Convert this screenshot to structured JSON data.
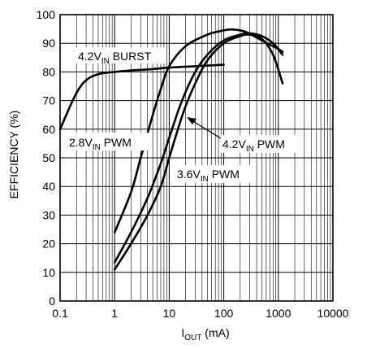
{
  "chart_data": {
    "type": "line",
    "x_scale": "log",
    "xlim": [
      0.1,
      10000
    ],
    "ylim": [
      0,
      100
    ],
    "xlabel": {
      "main": "I",
      "sub": "OUT",
      "rest": " (mA)"
    },
    "ylabel": "EFFICIENCY (%)",
    "x_ticks": [
      "0.1",
      "1",
      "10",
      "100",
      "1000",
      "10000"
    ],
    "y_ticks": [
      "0",
      "10",
      "20",
      "30",
      "40",
      "50",
      "60",
      "70",
      "80",
      "90",
      "100"
    ],
    "grid": true,
    "series": [
      {
        "label": {
          "pre": "4.2V",
          "sub": "IN",
          "post": " BURST"
        },
        "points": [
          [
            0.1,
            60
          ],
          [
            0.13,
            65
          ],
          [
            0.18,
            71
          ],
          [
            0.25,
            75.5
          ],
          [
            0.35,
            78
          ],
          [
            0.5,
            79.2
          ],
          [
            0.7,
            79.7
          ],
          [
            1,
            80
          ],
          [
            2,
            80.5
          ],
          [
            5,
            81
          ],
          [
            10,
            81.5
          ],
          [
            30,
            82
          ],
          [
            100,
            82.5
          ]
        ]
      },
      {
        "label": {
          "pre": "2.8V",
          "sub": "IN",
          "post": " PWM"
        },
        "points": [
          [
            1,
            24
          ],
          [
            2,
            38
          ],
          [
            3,
            50
          ],
          [
            5,
            65
          ],
          [
            7,
            74
          ],
          [
            10,
            82
          ],
          [
            20,
            89
          ],
          [
            50,
            93
          ],
          [
            100,
            94.5
          ],
          [
            150,
            94.8
          ],
          [
            250,
            94
          ],
          [
            500,
            91
          ],
          [
            1000,
            88
          ],
          [
            1200,
            87
          ]
        ]
      },
      {
        "label": {
          "pre": "4.2V",
          "sub": "IN",
          "post": " PWM"
        },
        "points": [
          [
            1,
            11
          ],
          [
            2,
            20
          ],
          [
            4,
            30
          ],
          [
            7,
            40
          ],
          [
            10,
            50
          ],
          [
            15,
            61
          ],
          [
            20,
            68
          ],
          [
            30,
            76
          ],
          [
            50,
            84
          ],
          [
            100,
            90
          ],
          [
            200,
            92.5
          ],
          [
            300,
            93
          ],
          [
            500,
            91.5
          ],
          [
            800,
            86
          ],
          [
            1200,
            76
          ]
        ]
      },
      {
        "label": {
          "pre": "3.6V",
          "sub": "IN",
          "post": " PWM"
        },
        "points": [
          [
            1,
            13.5
          ],
          [
            2,
            24
          ],
          [
            4,
            36
          ],
          [
            7,
            48
          ],
          [
            10,
            57
          ],
          [
            15,
            67
          ],
          [
            20,
            73
          ],
          [
            30,
            80
          ],
          [
            50,
            86
          ],
          [
            100,
            91
          ],
          [
            200,
            93
          ],
          [
            300,
            93.5
          ],
          [
            500,
            92.5
          ],
          [
            800,
            90
          ],
          [
            1200,
            86
          ]
        ]
      }
    ]
  }
}
